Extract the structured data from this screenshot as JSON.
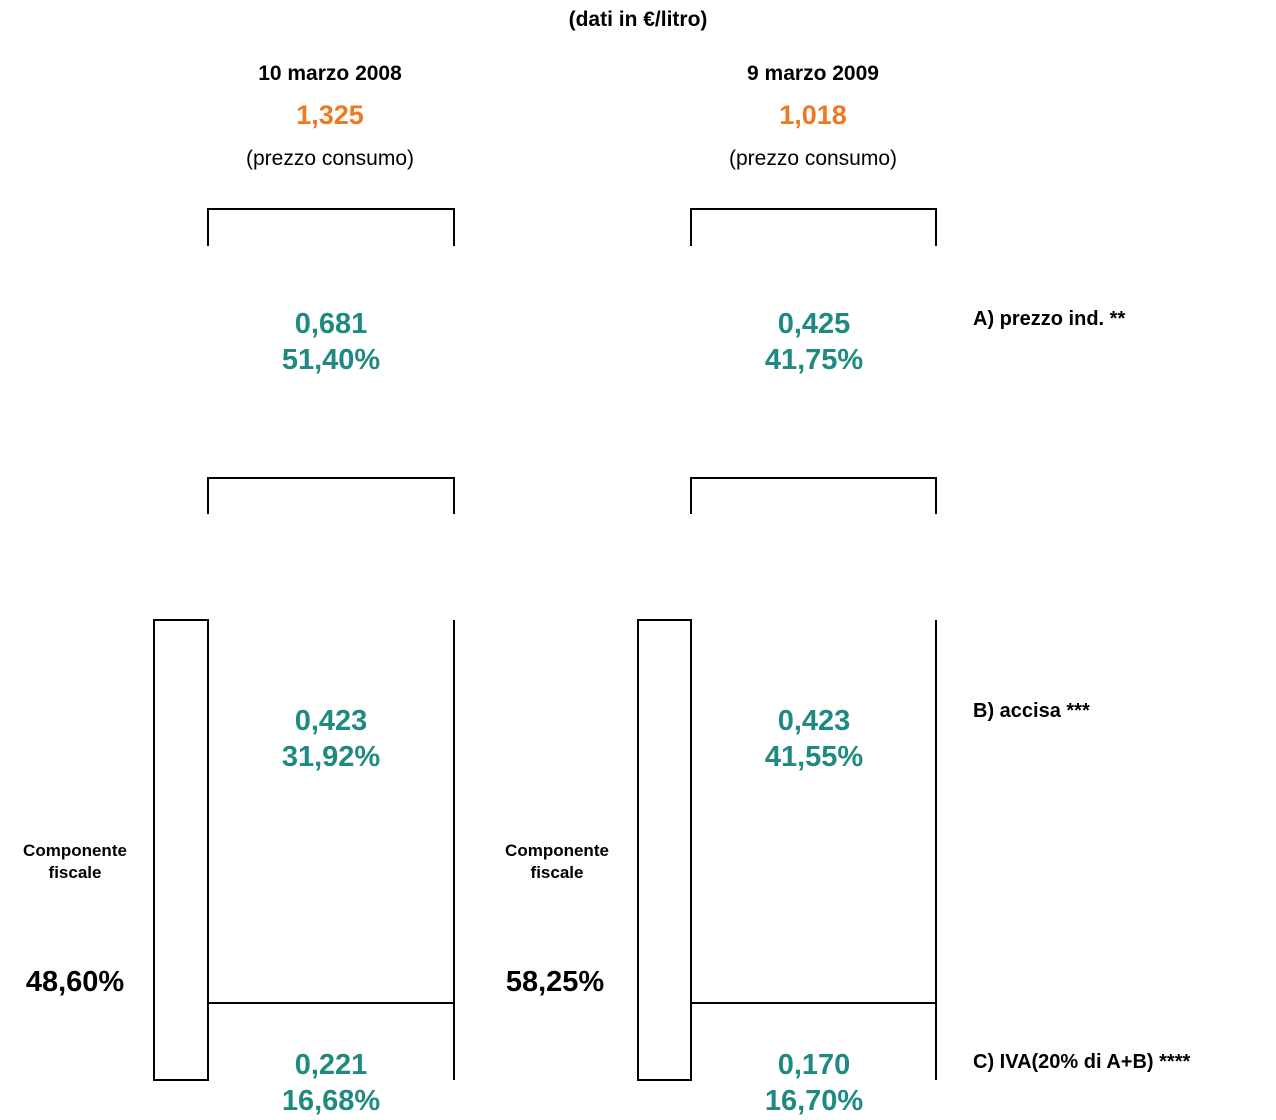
{
  "colors": {
    "total": "#f07820",
    "component": "#1f8a80",
    "text": "#000000",
    "line": "#000000"
  },
  "unit_note": "(dati in €/litro)",
  "component_labels": {
    "a": "A) prezzo ind. **",
    "b": "B) accisa ***",
    "c": "C) IVA(20% di A+B) ****"
  },
  "columns": [
    {
      "date": "10 marzo 2008",
      "total": "1,325",
      "total_note": "(prezzo consumo)",
      "a": {
        "value": "0,681",
        "pct": "51,40%"
      },
      "b": {
        "value": "0,423",
        "pct": "31,92%"
      },
      "c": {
        "value": "0,221",
        "pct": "16,68%"
      },
      "fiscal_label_1": "Componente",
      "fiscal_label_2": "fiscale",
      "fiscal_pct": "48,60%"
    },
    {
      "date": "9 marzo 2009",
      "total": "1,018",
      "total_note": "(prezzo consumo)",
      "a": {
        "value": "0,425",
        "pct": "41,75%"
      },
      "b": {
        "value": "0,423",
        "pct": "41,55%"
      },
      "c": {
        "value": "0,170",
        "pct": "16,70%"
      },
      "fiscal_label_1": "Componente",
      "fiscal_label_2": "fiscale",
      "fiscal_pct": "58,25%"
    }
  ]
}
